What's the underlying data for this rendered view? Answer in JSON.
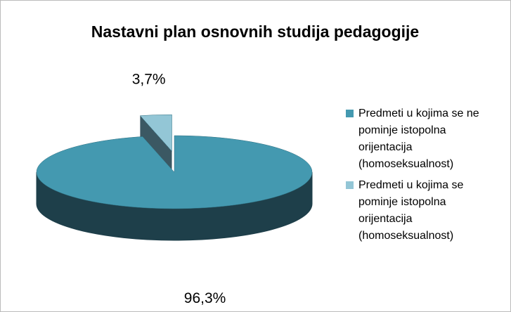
{
  "chart_data": {
    "type": "pie3d",
    "title": "Nastavni plan osnovnih studija pedagogije",
    "categories": [
      "Predmeti u kojima se ne pominje istopolna orijentacija (homoseksualnost)",
      "Predmeti u kojima se pominje istopolna orijentacija (homoseksualnost)"
    ],
    "values": [
      96.3,
      3.7
    ],
    "value_labels": [
      "96,3%",
      "3,7%"
    ],
    "colors": [
      "#4499b0",
      "#93c6d6"
    ],
    "side_colors": [
      "#1e3f4a",
      "#3b5863"
    ],
    "exploded": [
      false,
      true
    ],
    "legend": "right"
  }
}
